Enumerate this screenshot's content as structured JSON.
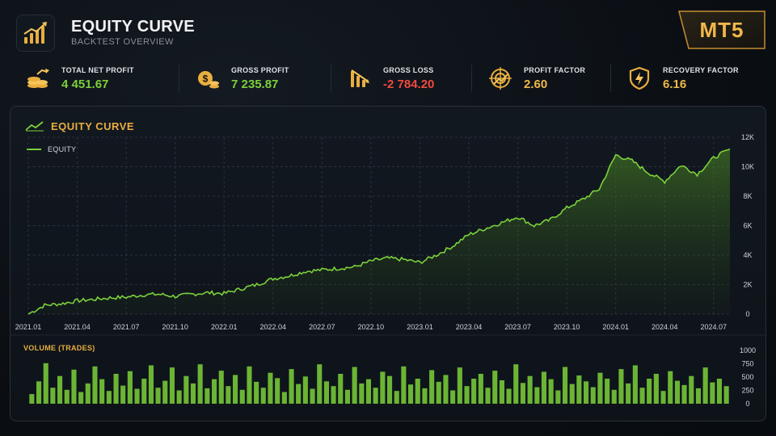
{
  "header": {
    "title": "EQUITY CURVE",
    "subtitle": "BACKTEST OVERVIEW",
    "badge": "MT5"
  },
  "stats": [
    {
      "label": "TOTAL NET PROFIT",
      "value": "4 451.67",
      "color": "#7bd13a",
      "icon": "coins-up-icon"
    },
    {
      "label": "GROSS PROFIT",
      "value": "7 235.87",
      "color": "#7bd13a",
      "icon": "money-bag-icon"
    },
    {
      "label": "GROSS LOSS",
      "value": "-2 784.20",
      "color": "#f04a3e",
      "icon": "bars-down-icon"
    },
    {
      "label": "PROFIT FACTOR",
      "value": "2.60",
      "color": "#f0b84a",
      "icon": "target-icon"
    },
    {
      "label": "RECOVERY FACTOR",
      "value": "6.16",
      "color": "#f0b84a",
      "icon": "shield-icon"
    }
  ],
  "panel": {
    "title": "EQUITY CURVE",
    "legend": "EQUITY",
    "volume_title": "VOLUME (TRADES)"
  },
  "chart_data": [
    {
      "type": "area",
      "title": "EQUITY CURVE",
      "series": [
        {
          "name": "EQUITY",
          "color": "#7bd13a",
          "x": [
            "2021.01",
            "2021.02",
            "2021.03",
            "2021.04",
            "2021.05",
            "2021.06",
            "2021.07",
            "2021.08",
            "2021.09",
            "2021.10",
            "2021.11",
            "2021.12",
            "2022.01",
            "2022.02",
            "2022.03",
            "2022.04",
            "2022.05",
            "2022.06",
            "2022.07",
            "2022.08",
            "2022.09",
            "2022.10",
            "2022.11",
            "2022.12",
            "2023.01",
            "2023.02",
            "2023.03",
            "2023.04",
            "2023.05",
            "2023.06",
            "2023.07",
            "2023.08",
            "2023.09",
            "2023.10",
            "2023.11",
            "2023.12",
            "2024.01",
            "2024.02",
            "2024.03",
            "2024.04",
            "2024.05",
            "2024.06",
            "2024.07",
            "2024.08"
          ],
          "values": [
            0,
            600,
            700,
            900,
            1000,
            1100,
            1150,
            1300,
            1350,
            1200,
            1350,
            1450,
            1400,
            1700,
            2000,
            2400,
            2600,
            2900,
            3000,
            3100,
            3200,
            3600,
            3800,
            3700,
            3500,
            4000,
            4600,
            5400,
            5800,
            6200,
            6600,
            6000,
            6400,
            7200,
            7800,
            8500,
            10800,
            10400,
            9600,
            9000,
            10100,
            9500,
            10600,
            11200
          ]
        }
      ],
      "y_ticks": [
        "0",
        "2K",
        "4K",
        "6K",
        "8K",
        "10K",
        "12K"
      ],
      "x_ticks": [
        "2021.01",
        "2021.04",
        "2021.07",
        "2021.10",
        "2022.01",
        "2022.04",
        "2022.07",
        "2022.10",
        "2023.01",
        "2023.04",
        "2023.07",
        "2023.10",
        "2024.01",
        "2024.04",
        "2024.07"
      ],
      "ylim": [
        0,
        12000
      ],
      "grid": true,
      "legend_position": "top-left"
    },
    {
      "type": "bar",
      "title": "VOLUME (TRADES)",
      "color": "#7bd13a",
      "y_ticks": [
        "0",
        "250",
        "500",
        "750",
        "1000"
      ],
      "ylim": [
        0,
        1000
      ],
      "values": [
        180,
        420,
        760,
        300,
        520,
        260,
        640,
        220,
        380,
        700,
        460,
        240,
        560,
        340,
        610,
        280,
        470,
        720,
        300,
        430,
        680,
        250,
        520,
        380,
        740,
        290,
        460,
        620,
        330,
        540,
        260,
        700,
        410,
        300,
        580,
        480,
        220,
        650,
        370,
        510,
        280,
        740,
        420,
        330,
        560,
        260,
        690,
        380,
        460,
        300,
        600,
        520,
        240,
        700,
        360,
        470,
        290,
        630,
        410,
        540,
        250,
        680,
        330,
        470,
        560,
        300,
        620,
        440,
        280,
        740,
        390,
        520,
        310,
        600,
        460,
        250,
        690,
        370,
        530,
        420,
        310,
        580,
        470,
        260,
        650,
        380,
        720,
        300,
        470,
        560,
        240,
        610,
        430,
        350,
        520,
        290,
        680,
        400,
        470,
        330
      ]
    }
  ]
}
